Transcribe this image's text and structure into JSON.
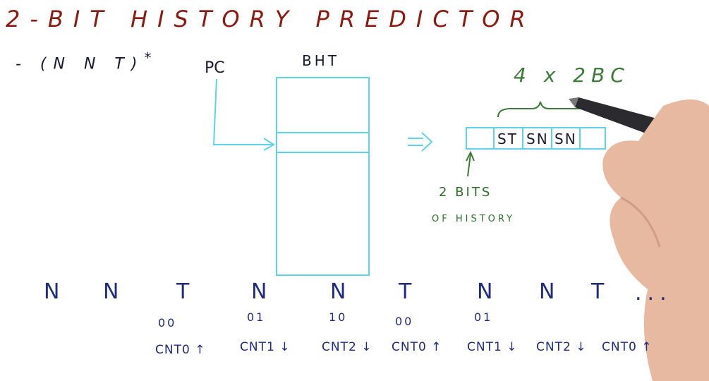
{
  "title": "2-BIT HISTORY PREDICTOR",
  "pattern": {
    "text": "- (N N T)",
    "star": "*"
  },
  "labels": {
    "pc": "PC",
    "bht": "BHT",
    "arrow": "=>",
    "multiplier": "4 x 2BC"
  },
  "entry": {
    "cells": [
      "ST",
      "SN",
      "SN"
    ]
  },
  "history_label": {
    "line1": "2 BITS",
    "line2": "OF HISTORY"
  },
  "sequence": {
    "outcomes": [
      "N",
      "N",
      "T",
      "N",
      "N",
      "T",
      "N",
      "N",
      "T"
    ],
    "ellipsis": "...",
    "histories": [
      "00",
      "01",
      "10",
      "00",
      "01"
    ],
    "counters": [
      "CNT0 ↑",
      "CNT1 ↓",
      "CNT2 ↓",
      "CNT0 ↑",
      "CNT1 ↓",
      "CNT2 ↓",
      "CNT0 ↑"
    ]
  },
  "colors": {
    "title": "#8b1a10",
    "ink": "#1a1a30",
    "cyan": "#5fd3e6",
    "green": "#3d7a3a",
    "blue": "#1f2a80"
  }
}
